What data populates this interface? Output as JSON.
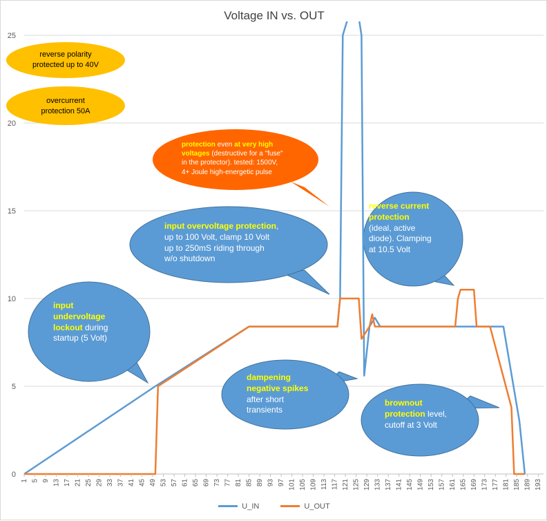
{
  "chart_data": {
    "type": "line",
    "title": "Voltage IN vs. OUT",
    "xlabel": "",
    "ylabel": "",
    "x_range": [
      1,
      195
    ],
    "ylim": [
      0,
      25
    ],
    "y_ticks": [
      0,
      5,
      10,
      15,
      20,
      25
    ],
    "x_tick_start": 1,
    "x_tick_step": 4,
    "x_tick_end": 193,
    "grid": "horizontal",
    "legend": "bottom",
    "series": [
      {
        "name": "U_IN",
        "color": "#5b9bd5",
        "points": [
          [
            1,
            0
          ],
          [
            50,
            5
          ],
          [
            85,
            8.4
          ],
          [
            118,
            8.4
          ],
          [
            119,
            10
          ],
          [
            120,
            25
          ],
          [
            122,
            26
          ],
          [
            126,
            26
          ],
          [
            127,
            25
          ],
          [
            128,
            5.6
          ],
          [
            130,
            8.4
          ],
          [
            132,
            8.9
          ],
          [
            134,
            8.4
          ],
          [
            180,
            8.4
          ],
          [
            186,
            3
          ],
          [
            188,
            0
          ]
        ]
      },
      {
        "name": "U_OUT",
        "color": "#ed7d31",
        "points": [
          [
            1,
            0
          ],
          [
            50,
            0
          ],
          [
            51,
            5
          ],
          [
            85,
            8.4
          ],
          [
            118,
            8.4
          ],
          [
            119,
            10
          ],
          [
            126,
            10
          ],
          [
            127,
            7.7
          ],
          [
            130,
            8.4
          ],
          [
            131,
            9.1
          ],
          [
            132,
            8.4
          ],
          [
            162,
            8.4
          ],
          [
            163,
            10
          ],
          [
            164,
            10.5
          ],
          [
            169,
            10.5
          ],
          [
            170,
            8.4
          ],
          [
            175,
            8.4
          ],
          [
            183,
            3.8
          ],
          [
            184,
            0
          ],
          [
            188,
            0
          ]
        ]
      }
    ]
  },
  "annotations": [
    {
      "name": "reverse-polarity-callout",
      "fill": "#ffc000",
      "text_color": "#000000",
      "font_size": 11,
      "lines": [
        [
          {
            "t": "reverse polarity"
          }
        ],
        [
          {
            "t": "protected up to 40V"
          }
        ]
      ]
    },
    {
      "name": "overcurrent-callout",
      "fill": "#ffc000",
      "text_color": "#000000",
      "font_size": 11,
      "lines": [
        [
          {
            "t": "overcurrent"
          }
        ],
        [
          {
            "t": "protection 50A"
          }
        ]
      ]
    },
    {
      "name": "high-voltage-protection-callout",
      "fill": "#ff6600",
      "text_color": "#ffffff",
      "font_size": 10,
      "lines": [
        [
          {
            "t": "protection",
            "hl": true
          },
          {
            "t": "  even "
          },
          {
            "t": "at very high",
            "hl": true
          }
        ],
        [
          {
            "t": "voltages",
            "hl": true
          },
          {
            "t": " (destructive for a \"fuse\""
          }
        ],
        [
          {
            "t": "in the protector).  tested: 1500V,"
          }
        ],
        [
          {
            "t": "4+ Joule high-energetic pulse"
          }
        ]
      ]
    },
    {
      "name": "input-overvoltage-callout",
      "fill": "#5b9bd5",
      "text_color": "#ffffff",
      "font_size": 12,
      "lines": [
        [
          {
            "t": "input overvoltage protection",
            "hl": true
          },
          {
            "t": ","
          }
        ],
        [
          {
            "t": "up to 100 Volt, clamp 10 Volt"
          }
        ],
        [
          {
            "t": "up to 250mS riding through"
          }
        ],
        [
          {
            "t": "w/o shutdown"
          }
        ]
      ]
    },
    {
      "name": "reverse-current-callout",
      "fill": "#5b9bd5",
      "text_color": "#ffffff",
      "font_size": 12,
      "lines": [
        [
          {
            "t": "reverse current",
            "hl": true
          }
        ],
        [
          {
            "t": "protection",
            "hl": true
          }
        ],
        [
          {
            "t": "(ideal, active"
          }
        ],
        [
          {
            "t": "diode). Clamping"
          }
        ],
        [
          {
            "t": "at 10.5 Volt"
          }
        ]
      ]
    },
    {
      "name": "undervoltage-lockout-callout",
      "fill": "#5b9bd5",
      "text_color": "#ffffff",
      "font_size": 12,
      "lines": [
        [
          {
            "t": "input",
            "hl": true
          }
        ],
        [
          {
            "t": "undervoltage",
            "hl": true
          }
        ],
        [
          {
            "t": "lockout",
            "hl": true
          },
          {
            "t": " during"
          }
        ],
        [
          {
            "t": "startup (5 Volt)"
          }
        ]
      ]
    },
    {
      "name": "dampening-spikes-callout",
      "fill": "#5b9bd5",
      "text_color": "#ffffff",
      "font_size": 12,
      "lines": [
        [
          {
            "t": "dampening",
            "hl": true
          }
        ],
        [
          {
            "t": "negative spikes",
            "hl": true
          }
        ],
        [
          {
            "t": "after short"
          }
        ],
        [
          {
            "t": "transients"
          }
        ]
      ]
    },
    {
      "name": "brownout-callout",
      "fill": "#5b9bd5",
      "text_color": "#ffffff",
      "font_size": 12,
      "lines": [
        [
          {
            "t": "brownout",
            "hl": true
          }
        ],
        [
          {
            "t": "protection",
            "hl": true
          },
          {
            "t": " level,"
          }
        ],
        [
          {
            "t": "cutoff at 3 Volt"
          }
        ]
      ]
    }
  ]
}
